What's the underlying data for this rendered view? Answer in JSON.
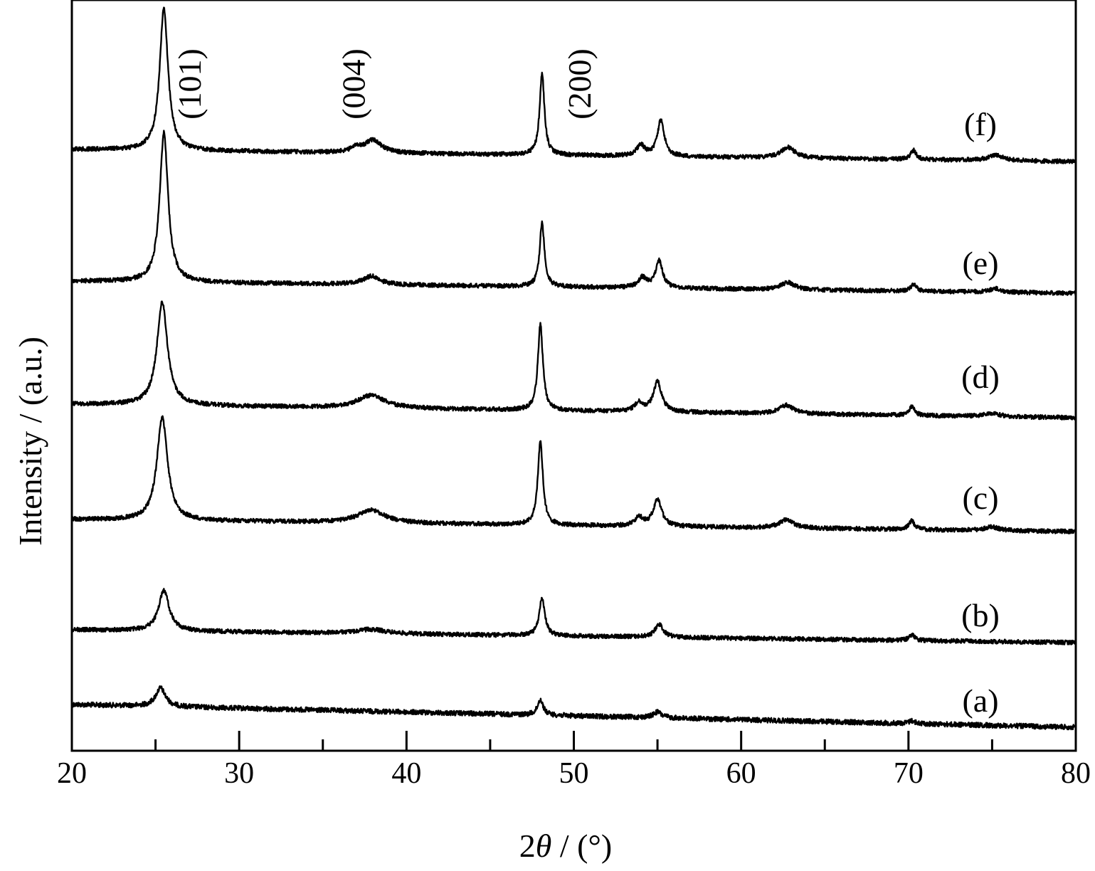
{
  "chart_data": {
    "type": "line",
    "xlabel_prefix": "2",
    "xlabel_symbol": "θ",
    "xlabel_suffix": " / (°)",
    "ylabel": "Intensity / (a.u.)",
    "xlim": [
      20,
      80
    ],
    "x_ticks": [
      20,
      30,
      40,
      50,
      60,
      70,
      80
    ],
    "x_tick_labels": [
      "20",
      "30",
      "40",
      "50",
      "60",
      "70",
      "80"
    ],
    "y_ticks_shown": false,
    "grid": false,
    "peak_annotations": [
      {
        "x": 27.7,
        "label": "(101)"
      },
      {
        "x": 37.5,
        "label": "(004)"
      },
      {
        "x": 51.0,
        "label": "(200)"
      }
    ],
    "series": [
      {
        "name": "(a)",
        "baseline_start": 990,
        "baseline_end": 1022,
        "peaks": [
          [
            25.3,
            26,
            0.35
          ],
          [
            48.0,
            22,
            0.2
          ],
          [
            55.0,
            8,
            0.3
          ],
          [
            70.2,
            4,
            0.2
          ]
        ],
        "noise": 7
      },
      {
        "name": "(b)",
        "baseline_start": 885,
        "baseline_end": 903,
        "peaks": [
          [
            25.5,
            57,
            0.38
          ],
          [
            48.1,
            53,
            0.2
          ],
          [
            55.1,
            18,
            0.3
          ],
          [
            70.2,
            8,
            0.2
          ],
          [
            37.9,
            6,
            1.0
          ]
        ],
        "noise": 6
      },
      {
        "name": "(c)",
        "baseline_start": 730,
        "baseline_end": 747,
        "peaks": [
          [
            25.4,
            145,
            0.38
          ],
          [
            37.9,
            18,
            1.0
          ],
          [
            48.0,
            118,
            0.18
          ],
          [
            53.9,
            12,
            0.3
          ],
          [
            55.0,
            38,
            0.3
          ],
          [
            62.7,
            12,
            0.5
          ],
          [
            70.2,
            12,
            0.2
          ],
          [
            75.0,
            5,
            0.5
          ]
        ],
        "noise": 6
      },
      {
        "name": "(d)",
        "baseline_start": 568,
        "baseline_end": 587,
        "peaks": [
          [
            25.4,
            145,
            0.38
          ],
          [
            37.9,
            18,
            1.0
          ],
          [
            48.0,
            120,
            0.18
          ],
          [
            53.9,
            12,
            0.3
          ],
          [
            55.0,
            42,
            0.3
          ],
          [
            62.7,
            12,
            0.5
          ],
          [
            70.2,
            12,
            0.2
          ],
          [
            75.0,
            5,
            0.5
          ]
        ],
        "noise": 6
      },
      {
        "name": "(e)",
        "baseline_start": 395,
        "baseline_end": 412,
        "peaks": [
          [
            25.5,
            210,
            0.3
          ],
          [
            37.9,
            12,
            0.6
          ],
          [
            48.1,
            90,
            0.17
          ],
          [
            54.1,
            14,
            0.3
          ],
          [
            55.1,
            38,
            0.25
          ],
          [
            62.8,
            10,
            0.5
          ],
          [
            70.3,
            10,
            0.2
          ],
          [
            75.2,
            5,
            0.4
          ]
        ],
        "noise": 6
      },
      {
        "name": "(f)",
        "baseline_start": 210,
        "baseline_end": 227,
        "peaks": [
          [
            25.5,
            200,
            0.3
          ],
          [
            38.0,
            18,
            0.6
          ],
          [
            37.0,
            6,
            0.4
          ],
          [
            48.1,
            115,
            0.17
          ],
          [
            54.0,
            15,
            0.3
          ],
          [
            55.2,
            50,
            0.25
          ],
          [
            62.8,
            15,
            0.5
          ],
          [
            70.3,
            13,
            0.2
          ],
          [
            75.2,
            8,
            0.5
          ]
        ],
        "noise": 6
      }
    ]
  }
}
